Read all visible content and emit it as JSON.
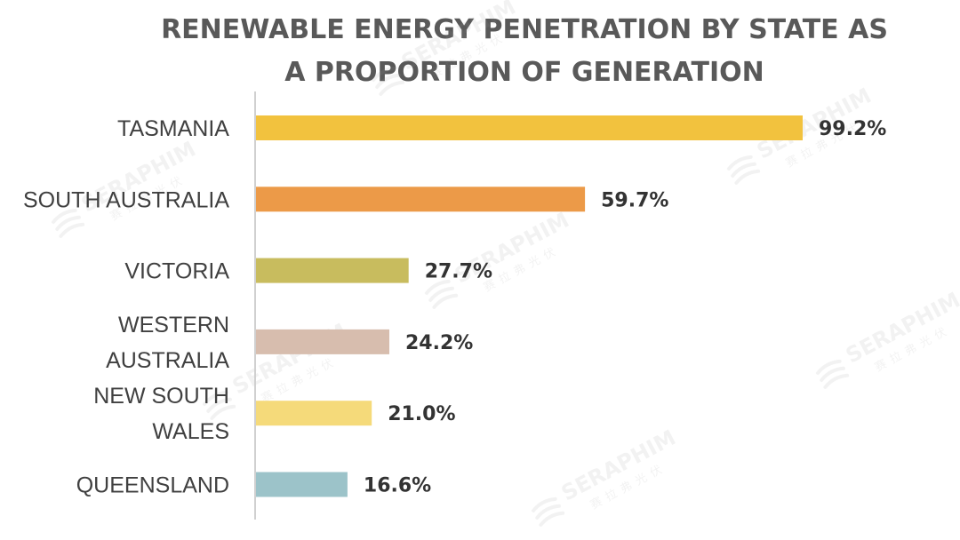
{
  "chart_data": {
    "type": "bar",
    "orientation": "horizontal",
    "title_lines": [
      "RENEWABLE ENERGY PENETRATION BY STATE AS",
      "A PROPORTION OF GENERATION"
    ],
    "categories": [
      [
        "TASMANIA"
      ],
      [
        "SOUTH AUSTRALIA"
      ],
      [
        "VICTORIA"
      ],
      [
        "WESTERN",
        "AUSTRALIA"
      ],
      [
        "NEW SOUTH",
        "WALES"
      ],
      [
        "QUEENSLAND"
      ]
    ],
    "values": [
      99.2,
      59.7,
      27.7,
      24.2,
      21.0,
      16.6
    ],
    "value_labels": [
      "99.2%",
      "59.7%",
      "27.7%",
      "24.2%",
      "21.0%",
      "16.6%"
    ],
    "bar_colors": [
      "#F2C23E",
      "#EC9A48",
      "#C8BC5E",
      "#D7BDAE",
      "#F5DA7A",
      "#9CC3C9"
    ],
    "xlim": [
      0,
      100
    ],
    "grid": false,
    "legend": "none"
  },
  "watermark": {
    "brand": "SERAPHIM",
    "subtitle": "赛拉弗光伏"
  }
}
